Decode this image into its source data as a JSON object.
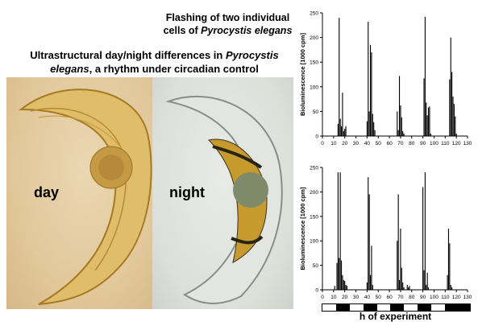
{
  "title_right": {
    "line1": "Flashing of two individual",
    "line2_plain": "cells of ",
    "line2_italic": "Pyrocystis elegans"
  },
  "title_left": {
    "line1_plain": "Ultrastructural day/night differences in ",
    "line1_italic": "Pyrocystis",
    "line2_italic": "elegans",
    "line2_plain": ", a rhythm under circadian control"
  },
  "photos": {
    "day_label": "day",
    "night_label": "night"
  },
  "light_dark_key": {
    "dark_intervals": [
      [
        12,
        24
      ],
      [
        36,
        48
      ],
      [
        60,
        72
      ],
      [
        84,
        96
      ],
      [
        108,
        130
      ]
    ]
  },
  "colors": {
    "bar": "#000000",
    "axis": "#000000",
    "key_dark": "#000000",
    "key_light": "#ffffff"
  },
  "xlabel_shared": "h of experiment",
  "chart_data": [
    {
      "type": "bar",
      "title": "",
      "xlabel": "",
      "ylabel": "Bioluminescence [1000 cpm]",
      "xlim": [
        0,
        130
      ],
      "ylim": [
        0,
        250
      ],
      "xticks": [
        0,
        10,
        20,
        30,
        40,
        50,
        60,
        70,
        80,
        90,
        100,
        110,
        120,
        130
      ],
      "yticks": [
        0,
        50,
        100,
        150,
        200,
        250
      ],
      "x": [
        14,
        15,
        16,
        17,
        18,
        19,
        20,
        21,
        40,
        41,
        42,
        43,
        44,
        45,
        46,
        47,
        67,
        68,
        69,
        70,
        71,
        72,
        73,
        91,
        92,
        93,
        94,
        95,
        96,
        97,
        114,
        115,
        116,
        117,
        118,
        119,
        120
      ],
      "values": [
        25,
        240,
        35,
        20,
        88,
        10,
        15,
        20,
        30,
        232,
        50,
        185,
        170,
        45,
        28,
        12,
        50,
        12,
        122,
        62,
        38,
        10,
        5,
        117,
        242,
        68,
        42,
        58,
        60,
        5,
        115,
        200,
        130,
        80,
        65,
        40,
        5
      ]
    },
    {
      "type": "bar",
      "title": "",
      "xlabel": "",
      "ylabel": "Bioluminescence [1000 cpm]",
      "xlim": [
        0,
        130
      ],
      "ylim": [
        0,
        250
      ],
      "xticks": [
        0,
        10,
        20,
        30,
        40,
        50,
        60,
        70,
        80,
        90,
        100,
        110,
        120,
        130
      ],
      "yticks": [
        0,
        50,
        100,
        150,
        200,
        250
      ],
      "x": [
        11,
        13,
        14,
        15,
        16,
        17,
        18,
        19,
        20,
        21,
        22,
        40,
        41,
        42,
        43,
        44,
        45,
        67,
        68,
        69,
        70,
        71,
        72,
        73,
        76,
        77,
        78,
        90,
        91,
        92,
        93,
        94,
        95,
        112,
        113,
        114,
        115,
        116
      ],
      "values": [
        8,
        55,
        240,
        65,
        240,
        60,
        30,
        20,
        18,
        10,
        8,
        15,
        230,
        195,
        30,
        90,
        10,
        100,
        195,
        20,
        125,
        45,
        15,
        5,
        10,
        5,
        8,
        210,
        40,
        240,
        10,
        35,
        5,
        30,
        125,
        95,
        10,
        5
      ]
    }
  ]
}
